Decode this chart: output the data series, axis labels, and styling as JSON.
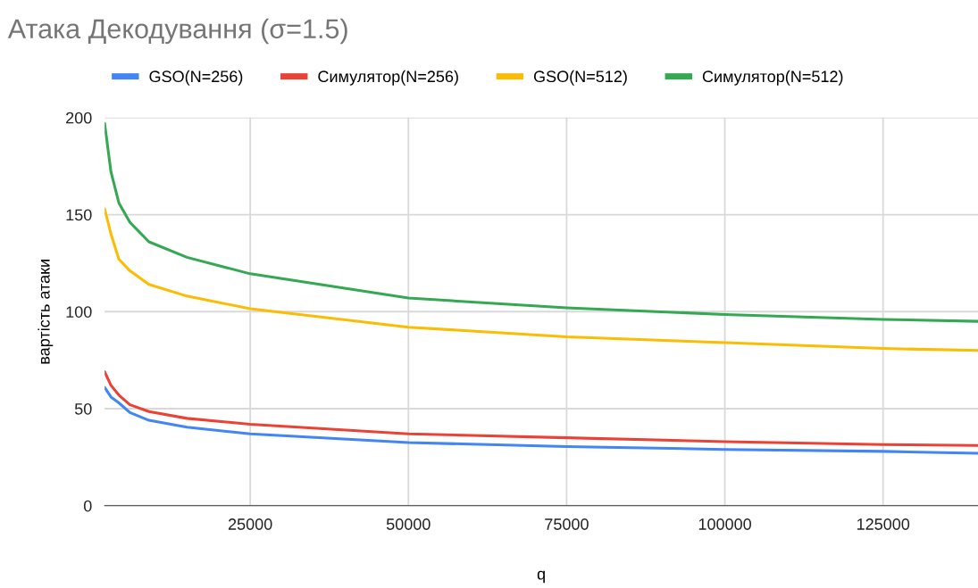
{
  "chart_data": {
    "type": "line",
    "title": "Атака Декодування (σ=1.5)",
    "xlabel": "q",
    "ylabel": "вартість атаки",
    "x": [
      2000,
      3000,
      4250,
      6000,
      9000,
      15000,
      25000,
      50000,
      75000,
      100000,
      125000,
      140000
    ],
    "series": [
      {
        "name": "GSO(N=256)",
        "color": "#4285f4",
        "values": [
          61,
          56,
          53,
          48,
          44,
          40.5,
          37,
          32.5,
          30.5,
          29,
          28,
          27
        ]
      },
      {
        "name": "Симулятор(N=256)",
        "color": "#ea4335",
        "values": [
          69,
          62,
          57,
          52,
          48.5,
          45,
          42,
          37,
          35,
          33,
          31.5,
          31
        ]
      },
      {
        "name": "GSO(N=512)",
        "color": "#fbbc04",
        "values": [
          153,
          140,
          127,
          121,
          114,
          108,
          101.5,
          92,
          87,
          84,
          81,
          80
        ]
      },
      {
        "name": "Симулятор(N=512)",
        "color": "#34a853",
        "values": [
          197,
          172,
          156,
          146,
          136,
          128,
          119.5,
          107,
          102,
          98.5,
          96,
          95
        ]
      }
    ],
    "xlim": [
      2000,
      140000
    ],
    "xticks": [
      25000,
      50000,
      75000,
      100000,
      125000
    ],
    "ylim": [
      0,
      200
    ],
    "yticks": [
      0,
      50,
      100,
      150,
      200
    ],
    "grid": true,
    "legend": "top",
    "marker": "none",
    "line_style": "solid"
  }
}
